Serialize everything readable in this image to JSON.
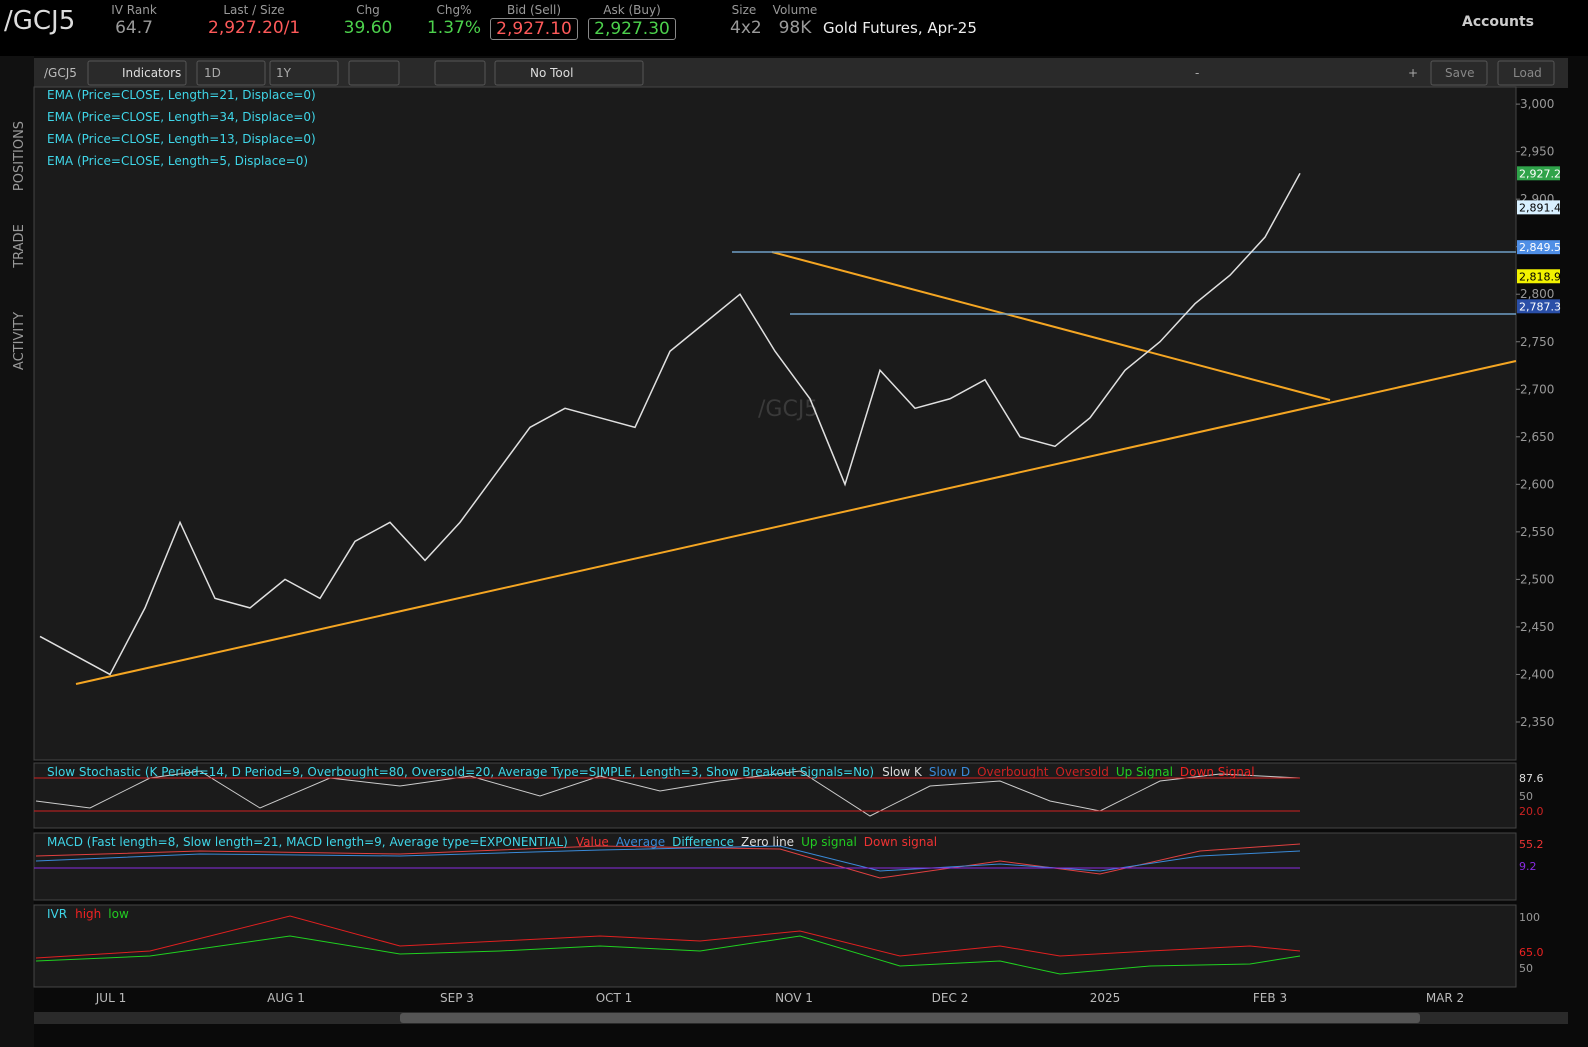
{
  "header": {
    "symbol": "/GCJ5",
    "fields": [
      {
        "label": "IV Rank",
        "value": "64.7",
        "color": "#9a9a9a"
      },
      {
        "label": "Last / Size",
        "value": "2,927.20",
        "extra": "/1",
        "color": "#ff5a5a"
      },
      {
        "label": "Chg",
        "value": "39.60",
        "color": "#4cd14c"
      },
      {
        "label": "Chg%",
        "value": "1.37%",
        "color": "#4cd14c"
      },
      {
        "label": "Bid (Sell)",
        "value": "2,927.10",
        "color": "#ff5a5a"
      },
      {
        "label": "Ask (Buy)",
        "value": "2,927.30",
        "color": "#4cd14c"
      },
      {
        "label": "Size",
        "value": "4x2",
        "color": "#9a9a9a"
      },
      {
        "label": "Volume",
        "value": "98K",
        "color": "#9a9a9a"
      }
    ],
    "description": "Gold Futures, Apr-25",
    "accounts": "Accounts"
  },
  "toolbar": {
    "symbol": "/GCJ5",
    "indicators": "Indicators",
    "aggregation": "1D",
    "range": "1Y",
    "tool": "No Tool",
    "zoom_out": "-",
    "zoom_in": "+",
    "save": "Save",
    "load": "Load"
  },
  "side_tabs": [
    "POSITIONS",
    "TRADE",
    "ACTIVITY"
  ],
  "studies": [
    "EMA (Price=CLOSE, Length=21, Displace=0)",
    "EMA (Price=CLOSE, Length=34, Displace=0)",
    "EMA (Price=CLOSE, Length=13, Displace=0)",
    "EMA (Price=CLOSE, Length=5, Displace=0)"
  ],
  "watermark": "/GCJ5",
  "chart_data": {
    "type": "line",
    "series": [
      {
        "name": "Close",
        "color": "#e0e0e0",
        "values": [
          2440,
          2420,
          2400,
          2470,
          2560,
          2480,
          2470,
          2500,
          2480,
          2540,
          2560,
          2520,
          2560,
          2610,
          2660,
          2680,
          2670,
          2660,
          2740,
          2770,
          2800,
          2740,
          2690,
          2600,
          2720,
          2680,
          2690,
          2710,
          2650,
          2640,
          2670,
          2720,
          2750,
          2790,
          2820,
          2860,
          2927.2
        ]
      }
    ],
    "ylim": [
      2310,
      3018
    ],
    "yticks": [
      {
        "value": 3000,
        "label": "3,000"
      },
      {
        "value": 2950,
        "label": "2,950"
      },
      {
        "value": 2900,
        "label": "2,900"
      },
      {
        "value": 2850,
        "label": "2,850"
      },
      {
        "value": 2800,
        "label": "2,800"
      },
      {
        "value": 2750,
        "label": "2,750"
      },
      {
        "value": 2700,
        "label": "2,700"
      },
      {
        "value": 2650,
        "label": "2,650"
      },
      {
        "value": 2600,
        "label": "2,600"
      },
      {
        "value": 2550,
        "label": "2,550"
      },
      {
        "value": 2500,
        "label": "2,500"
      },
      {
        "value": 2450,
        "label": "2,450"
      },
      {
        "value": 2400,
        "label": "2,400"
      },
      {
        "value": 2350,
        "label": "2,350"
      }
    ],
    "price_tags": [
      {
        "value": 2927.2,
        "label": "2,927.2",
        "color": "#2fa34a"
      },
      {
        "value": 2891.4,
        "label": "2,891.4",
        "color": "#d8f0ff"
      },
      {
        "value": 2849.5,
        "label": "2,849.5",
        "color": "#4f8fe6"
      },
      {
        "value": 2818.9,
        "label": "2,818.9",
        "color": "#f2f200"
      },
      {
        "value": 2787.3,
        "label": "2,787.3",
        "color": "#2a4fa8"
      }
    ],
    "x_labels": [
      "JUL 1",
      "AUG 1",
      "SEP 3",
      "OCT 1",
      "NOV 1",
      "DEC 2",
      "2025",
      "FEB 3",
      "MAR 2"
    ]
  },
  "stochastic": {
    "title": "Slow Stochastic (K Period=14, D Period=9, Overbought=80, Oversold=20, Average Type=SIMPLE, Length=3, Show Breakout Signals=No)",
    "legend": [
      "Slow K",
      "Slow D",
      "Overbought",
      "Oversold",
      "Up Signal",
      "Down Signal"
    ],
    "tags": [
      "87.6",
      "50",
      "20.0"
    ]
  },
  "macd": {
    "title": "MACD (Fast length=8, Slow length=21, MACD length=9, Average type=EXPONENTIAL)",
    "legend": [
      "Value",
      "Average",
      "Difference",
      "Zero line",
      "Up signal",
      "Down signal"
    ],
    "tags": [
      "55.2",
      "9.2"
    ]
  },
  "ivr": {
    "title": "IVR",
    "legend": [
      "high",
      "low"
    ],
    "tags": [
      "100",
      "65.0",
      "50"
    ]
  }
}
